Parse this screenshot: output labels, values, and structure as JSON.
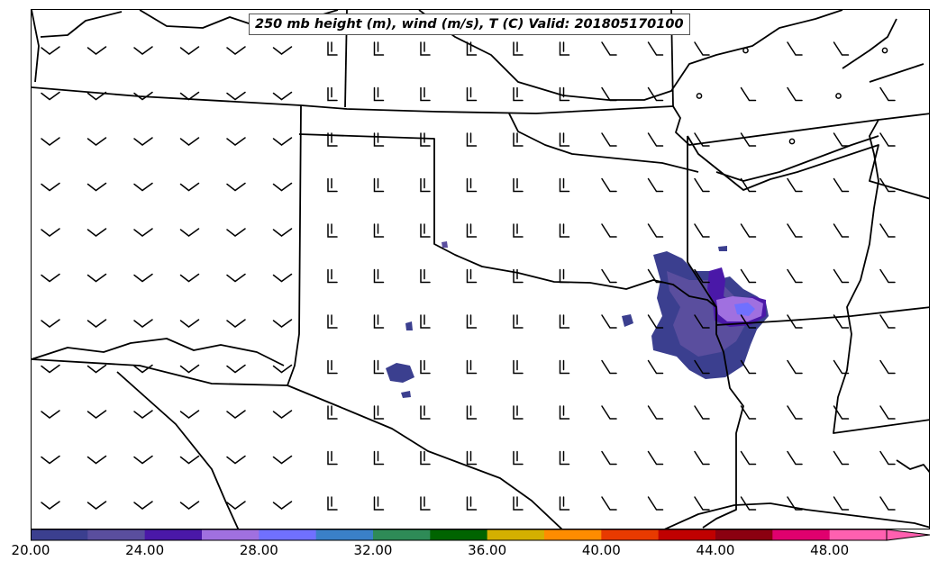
{
  "title": "250 mb height (m), wind (m/s), T (C) Valid: 201805170100",
  "colorbar": {
    "colors": [
      "#3b3f8f",
      "#5a4e9e",
      "#4a18a8",
      "#a070e0",
      "#7070ff",
      "#3a80c8",
      "#2e8b57",
      "#006400",
      "#d4b000",
      "#ff8c00",
      "#e83a00",
      "#c00000",
      "#8b0010",
      "#e0006e",
      "#ff60b0"
    ],
    "tick_labels": [
      "20.00",
      "24.00",
      "28.00",
      "32.00",
      "36.00",
      "40.00",
      "44.00",
      "48.00"
    ]
  },
  "contour_colors": {
    "t20": "#3b3f8f",
    "t22": "#5a4e9e",
    "t24": "#4a18a8",
    "t26": "#a070e0",
    "t28": "#7070ff"
  }
}
